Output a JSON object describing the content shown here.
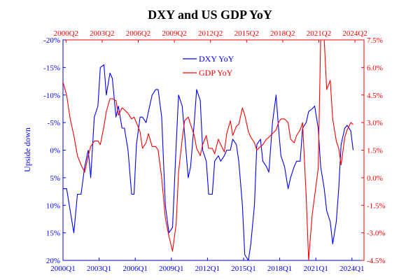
{
  "chart_data": {
    "type": "line",
    "title": "DXY and US GDP YoY",
    "ylabel_left": "Upside down",
    "ylabel_right": "",
    "left_axis": {
      "inverted": true,
      "ylim": [
        -20,
        20
      ],
      "ticks": [
        -20,
        -15,
        -10,
        -5,
        0,
        5,
        10,
        15,
        20
      ],
      "tick_labels": [
        "-20%",
        "-15%",
        "-10%",
        "-5%",
        "0%",
        "5%",
        "10%",
        "15%",
        "20%"
      ],
      "color": "#0000ff"
    },
    "right_axis": {
      "ylim": [
        -4.5,
        7.5
      ],
      "ticks": [
        7.5,
        6.0,
        4.5,
        3.0,
        1.5,
        0.0,
        -1.5,
        -3.0,
        -4.5
      ],
      "tick_labels": [
        "7.5%",
        "6.0%",
        "4.5%",
        "3.0%",
        "1.5%",
        "0.0%",
        "-1.5%",
        "-3.0%",
        "-4.5%"
      ],
      "color": "#ff0000"
    },
    "bottom_axis": {
      "xlim": [
        2000.0,
        2025.0
      ],
      "tick_positions": [
        2000.0,
        2003.0,
        2006.0,
        2009.0,
        2012.0,
        2015.0,
        2018.0,
        2021.0,
        2024.0
      ],
      "tick_labels": [
        "2000Q1",
        "2003Q1",
        "2006Q1",
        "2009Q1",
        "2012Q1",
        "2015Q1",
        "2018Q1",
        "2021Q1",
        "2024Q1"
      ],
      "color": "#0000ff"
    },
    "top_axis": {
      "tick_positions": [
        2000.25,
        2003.25,
        2006.25,
        2009.25,
        2012.25,
        2015.25,
        2018.25,
        2021.25,
        2024.25
      ],
      "tick_labels": [
        "2000Q2",
        "2003Q2",
        "2006Q2",
        "2009Q2",
        "2012Q2",
        "2015Q2",
        "2018Q2",
        "2021Q2",
        "2024Q2"
      ],
      "color": "#ff0000"
    },
    "legend": {
      "placement": "top-center"
    },
    "series": [
      {
        "name": "DXY YoY",
        "axis": "left",
        "color": "#0000ff",
        "points": [
          [
            2000.0,
            7
          ],
          [
            2000.3,
            7
          ],
          [
            2000.6,
            11
          ],
          [
            2000.9,
            15
          ],
          [
            2001.2,
            8
          ],
          [
            2001.5,
            8
          ],
          [
            2001.8,
            3
          ],
          [
            2002.1,
            0
          ],
          [
            2002.3,
            5
          ],
          [
            2002.6,
            -6
          ],
          [
            2002.9,
            -8
          ],
          [
            2003.1,
            -15
          ],
          [
            2003.4,
            -15.5
          ],
          [
            2003.6,
            -10
          ],
          [
            2003.9,
            -14
          ],
          [
            2004.1,
            -13
          ],
          [
            2004.4,
            -6
          ],
          [
            2004.6,
            -8
          ],
          [
            2004.9,
            -4
          ],
          [
            2005.1,
            -4
          ],
          [
            2005.4,
            0
          ],
          [
            2005.7,
            8
          ],
          [
            2005.9,
            8
          ],
          [
            2006.1,
            -1
          ],
          [
            2006.4,
            -6
          ],
          [
            2006.6,
            -6
          ],
          [
            2006.9,
            -5
          ],
          [
            2007.1,
            -7
          ],
          [
            2007.4,
            -10
          ],
          [
            2007.7,
            -11
          ],
          [
            2007.9,
            -11
          ],
          [
            2008.2,
            -6
          ],
          [
            2008.5,
            10
          ],
          [
            2008.8,
            15
          ],
          [
            2009.1,
            14
          ],
          [
            2009.4,
            -1
          ],
          [
            2009.6,
            -10
          ],
          [
            2009.9,
            -8
          ],
          [
            2010.1,
            -3
          ],
          [
            2010.4,
            5
          ],
          [
            2010.6,
            3
          ],
          [
            2010.9,
            -5
          ],
          [
            2011.1,
            -11
          ],
          [
            2011.4,
            -9
          ],
          [
            2011.6,
            0
          ],
          [
            2011.9,
            2
          ],
          [
            2012.1,
            8
          ],
          [
            2012.4,
            8
          ],
          [
            2012.6,
            2
          ],
          [
            2012.9,
            1
          ],
          [
            2013.1,
            2
          ],
          [
            2013.4,
            1
          ],
          [
            2013.6,
            0
          ],
          [
            2013.9,
            0
          ],
          [
            2014.1,
            -2
          ],
          [
            2014.4,
            -1
          ],
          [
            2014.6,
            2
          ],
          [
            2014.9,
            10
          ],
          [
            2015.1,
            19
          ],
          [
            2015.4,
            20
          ],
          [
            2015.6,
            17
          ],
          [
            2015.9,
            10
          ],
          [
            2016.1,
            -1
          ],
          [
            2016.4,
            -2
          ],
          [
            2016.6,
            2
          ],
          [
            2016.9,
            3
          ],
          [
            2017.1,
            4
          ],
          [
            2017.4,
            -5
          ],
          [
            2017.7,
            -10
          ],
          [
            2017.9,
            -4
          ],
          [
            2018.1,
            1
          ],
          [
            2018.4,
            3
          ],
          [
            2018.7,
            7
          ],
          [
            2018.9,
            5
          ],
          [
            2019.2,
            3
          ],
          [
            2019.4,
            2
          ],
          [
            2019.7,
            2
          ],
          [
            2019.9,
            -4
          ],
          [
            2020.2,
            -5
          ],
          [
            2020.4,
            -7
          ],
          [
            2020.7,
            -7.5
          ],
          [
            2020.9,
            -8
          ],
          [
            2021.2,
            -4
          ],
          [
            2021.4,
            3
          ],
          [
            2021.7,
            7
          ],
          [
            2021.9,
            11
          ],
          [
            2022.2,
            13
          ],
          [
            2022.4,
            17
          ],
          [
            2022.7,
            13
          ],
          [
            2022.9,
            7
          ],
          [
            2023.1,
            -1
          ],
          [
            2023.4,
            -4
          ],
          [
            2023.6,
            -4.5
          ],
          [
            2023.9,
            -3.5
          ],
          [
            2024.1,
            0
          ]
        ]
      },
      {
        "name": "GDP YoY",
        "axis": "right",
        "color": "#ff0000",
        "points": [
          [
            2000.0,
            5.2
          ],
          [
            2000.3,
            4.5
          ],
          [
            2000.6,
            3.2
          ],
          [
            2000.9,
            2.3
          ],
          [
            2001.2,
            1.2
          ],
          [
            2001.5,
            0.7
          ],
          [
            2001.8,
            0.3
          ],
          [
            2002.1,
            1.2
          ],
          [
            2002.3,
            1.7
          ],
          [
            2002.6,
            2.0
          ],
          [
            2002.9,
            2.0
          ],
          [
            2003.1,
            1.8
          ],
          [
            2003.4,
            2.8
          ],
          [
            2003.6,
            3.6
          ],
          [
            2003.9,
            4.3
          ],
          [
            2004.1,
            4.3
          ],
          [
            2004.4,
            4.2
          ],
          [
            2004.6,
            3.4
          ],
          [
            2004.9,
            3.8
          ],
          [
            2005.1,
            3.7
          ],
          [
            2005.4,
            3.5
          ],
          [
            2005.7,
            3.2
          ],
          [
            2005.9,
            3.3
          ],
          [
            2006.1,
            3.0
          ],
          [
            2006.4,
            2.5
          ],
          [
            2006.6,
            1.6
          ],
          [
            2006.9,
            1.9
          ],
          [
            2007.1,
            2.4
          ],
          [
            2007.4,
            1.7
          ],
          [
            2007.7,
            1.7
          ],
          [
            2007.9,
            1.5
          ],
          [
            2008.2,
            0.0
          ],
          [
            2008.5,
            -2.2
          ],
          [
            2008.8,
            -3.2
          ],
          [
            2009.1,
            -4.0
          ],
          [
            2009.4,
            -2.5
          ],
          [
            2009.6,
            0.3
          ],
          [
            2009.9,
            2.1
          ],
          [
            2010.1,
            3.1
          ],
          [
            2010.4,
            3.3
          ],
          [
            2010.6,
            2.9
          ],
          [
            2010.9,
            2.3
          ],
          [
            2011.1,
            1.6
          ],
          [
            2011.4,
            1.2
          ],
          [
            2011.6,
            1.8
          ],
          [
            2011.9,
            2.3
          ],
          [
            2012.1,
            1.6
          ],
          [
            2012.4,
            1.6
          ],
          [
            2012.6,
            1.3
          ],
          [
            2012.9,
            2.1
          ],
          [
            2013.1,
            1.8
          ],
          [
            2013.4,
            1.4
          ],
          [
            2013.6,
            2.4
          ],
          [
            2013.9,
            3.1
          ],
          [
            2014.1,
            2.3
          ],
          [
            2014.4,
            2.8
          ],
          [
            2014.6,
            2.9
          ],
          [
            2014.9,
            3.8
          ],
          [
            2015.1,
            3.4
          ],
          [
            2015.4,
            2.5
          ],
          [
            2015.6,
            2.2
          ],
          [
            2015.9,
            1.9
          ],
          [
            2016.1,
            1.5
          ],
          [
            2016.4,
            1.7
          ],
          [
            2016.6,
            1.8
          ],
          [
            2016.9,
            2.1
          ],
          [
            2017.1,
            2.2
          ],
          [
            2017.4,
            2.4
          ],
          [
            2017.7,
            2.6
          ],
          [
            2017.9,
            3.0
          ],
          [
            2018.1,
            3.2
          ],
          [
            2018.4,
            3.2
          ],
          [
            2018.7,
            3.0
          ],
          [
            2018.9,
            2.1
          ],
          [
            2019.2,
            1.9
          ],
          [
            2019.4,
            2.3
          ],
          [
            2019.7,
            2.6
          ],
          [
            2019.9,
            3.0
          ],
          [
            2020.2,
            -1.0
          ],
          [
            2020.4,
            -4.5
          ],
          [
            2020.7,
            -2.0
          ],
          [
            2020.9,
            -1.0
          ],
          [
            2021.2,
            0.5
          ],
          [
            2021.4,
            7.5
          ],
          [
            2021.7,
            7.5
          ],
          [
            2021.9,
            4.8
          ],
          [
            2022.2,
            5.3
          ],
          [
            2022.4,
            3.2
          ],
          [
            2022.7,
            2.0
          ],
          [
            2022.9,
            1.6
          ],
          [
            2023.1,
            0.7
          ],
          [
            2023.4,
            2.2
          ],
          [
            2023.6,
            2.6
          ],
          [
            2023.9,
            3.0
          ],
          [
            2024.1,
            2.9
          ]
        ]
      }
    ]
  }
}
